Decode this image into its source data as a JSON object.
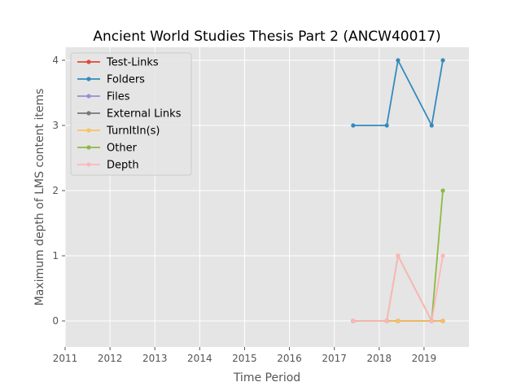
{
  "chart_data": {
    "type": "line",
    "title": "Ancient World Studies Thesis Part 2 (ANCW40017)",
    "xlabel": "Time Period",
    "ylabel": "Maximum depth of LMS content items",
    "xlim": [
      2011.0,
      2020.0
    ],
    "ylim": [
      -0.4,
      4.2
    ],
    "xticks": [
      2011,
      2012,
      2013,
      2014,
      2015,
      2016,
      2017,
      2018,
      2019
    ],
    "yticks": [
      0,
      1,
      2,
      3,
      4
    ],
    "grid": true,
    "legend_position": "top-left",
    "x": [
      2017.42,
      2018.17,
      2018.42,
      2019.17,
      2019.42
    ],
    "series": [
      {
        "name": "Test-Links",
        "color": "#e24a33",
        "values": [
          0,
          0,
          0,
          0,
          0
        ]
      },
      {
        "name": "Folders",
        "color": "#348abd",
        "values": [
          3,
          3,
          4,
          3,
          4
        ]
      },
      {
        "name": "Files",
        "color": "#988ed5",
        "values": [
          0,
          0,
          0,
          0,
          0
        ]
      },
      {
        "name": "External Links",
        "color": "#777777",
        "values": [
          0,
          0,
          0,
          0,
          0
        ]
      },
      {
        "name": "TurnItIn(s)",
        "color": "#fbc15e",
        "values": [
          0,
          0,
          0,
          0,
          0
        ]
      },
      {
        "name": "Other",
        "color": "#8eba42",
        "values": [
          0,
          0,
          1,
          0,
          2
        ]
      },
      {
        "name": "Depth",
        "color": "#ffb5b8",
        "values": [
          0,
          0,
          1,
          0,
          1
        ]
      }
    ]
  }
}
